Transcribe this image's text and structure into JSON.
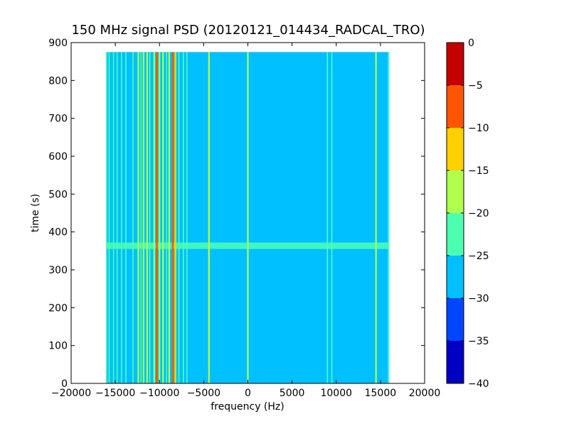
{
  "chart_data": {
    "type": "heatmap",
    "title": "150 MHz signal PSD (20120121_014434_RADCAL_TRO)",
    "xlabel": "frequency (Hz)",
    "ylabel": "time (s)",
    "xlim": [
      -20000,
      20000
    ],
    "ylim": [
      0,
      900
    ],
    "xticks": [
      -20000,
      -15000,
      -10000,
      -5000,
      0,
      5000,
      10000,
      15000,
      20000
    ],
    "xtick_labels": [
      "−20000",
      "−15000",
      "−10000",
      "−5000",
      "0",
      "5000",
      "10000",
      "15000",
      "20000"
    ],
    "yticks": [
      0,
      100,
      200,
      300,
      400,
      500,
      600,
      700,
      800,
      900
    ],
    "ytick_labels": [
      "0",
      "100",
      "200",
      "300",
      "400",
      "500",
      "600",
      "700",
      "800",
      "900"
    ],
    "data_extent": {
      "x": [
        -16000,
        16000
      ],
      "y": [
        0,
        875
      ]
    },
    "background_level": -27.5,
    "colorbar": {
      "levels": [
        -40,
        -35,
        -30,
        -25,
        -20,
        -15,
        -10,
        -5,
        0
      ],
      "tick_labels": [
        "−40",
        "−35",
        "−30",
        "−25",
        "−20",
        "−15",
        "−10",
        "−5",
        "0"
      ],
      "colors": [
        "#0000c4",
        "#0046ff",
        "#00c0ff",
        "#4dffb1",
        "#b1ff4d",
        "#ffd000",
        "#ff5500",
        "#c40000"
      ]
    },
    "vertical_lines": [
      {
        "x": -16000,
        "level": -22.5
      },
      {
        "x": -15700,
        "level": -22.5
      },
      {
        "x": -15200,
        "level": -22.5
      },
      {
        "x": -14800,
        "level": -22.5
      },
      {
        "x": -14300,
        "level": -22.5
      },
      {
        "x": -13800,
        "level": -22.5
      },
      {
        "x": -13000,
        "level": -22.5
      },
      {
        "x": -12400,
        "level": -17.5
      },
      {
        "x": -12100,
        "level": -22.5
      },
      {
        "x": -11800,
        "level": -17.5
      },
      {
        "x": -11400,
        "level": -17.5
      },
      {
        "x": -11100,
        "level": -22.5
      },
      {
        "x": -10600,
        "level": -17.5
      },
      {
        "x": -10300,
        "level": -7.5
      },
      {
        "x": -10000,
        "level": -17.5
      },
      {
        "x": -9600,
        "level": -17.5
      },
      {
        "x": -9200,
        "level": -22.5
      },
      {
        "x": -8900,
        "level": -17.5
      },
      {
        "x": -8500,
        "level": -7.5
      },
      {
        "x": -8200,
        "level": -12.5
      },
      {
        "x": -7800,
        "level": -22.5
      },
      {
        "x": -7300,
        "level": -22.5
      },
      {
        "x": -6900,
        "level": -22.5
      },
      {
        "x": -4400,
        "level": -17.5
      },
      {
        "x": 0,
        "level": -17.5
      },
      {
        "x": 9000,
        "level": -22.5
      },
      {
        "x": 9500,
        "level": -22.5
      },
      {
        "x": 14500,
        "level": -17.5
      },
      {
        "x": 15900,
        "level": -22.5
      }
    ],
    "horizontal_band": {
      "x": [
        -16000,
        16000
      ],
      "y_start": 355,
      "y_end": 372,
      "level": -22.5
    }
  }
}
